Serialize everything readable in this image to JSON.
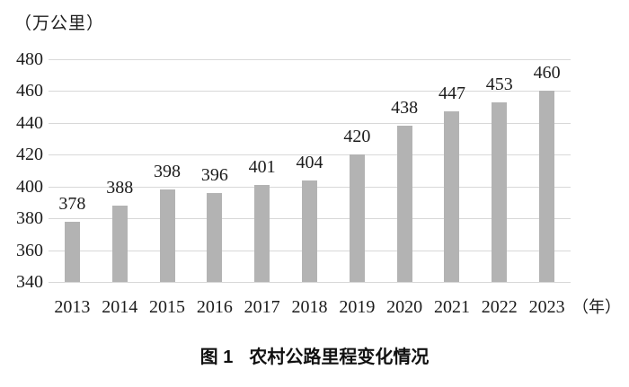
{
  "chart_data": {
    "type": "bar",
    "title": "图 1　农村公路里程变化情况",
    "caption_prefix": "图 1",
    "caption_text": "农村公路里程变化情况",
    "y_unit_label": "（万公里）",
    "x_unit_label": "（年）",
    "categories": [
      "2013",
      "2014",
      "2015",
      "2016",
      "2017",
      "2018",
      "2019",
      "2020",
      "2021",
      "2022",
      "2023"
    ],
    "values": [
      378,
      388,
      398,
      396,
      401,
      404,
      420,
      438,
      447,
      453,
      460
    ],
    "ylim": [
      340,
      480
    ],
    "ytick_step": 20,
    "yticks": [
      340,
      360,
      380,
      400,
      420,
      440,
      460,
      480
    ],
    "grid": true,
    "legend_position": "none",
    "bar_color": "#b3b3b3",
    "gridline_color": "#d8d8d8",
    "text_color": "#1c1c1c"
  }
}
